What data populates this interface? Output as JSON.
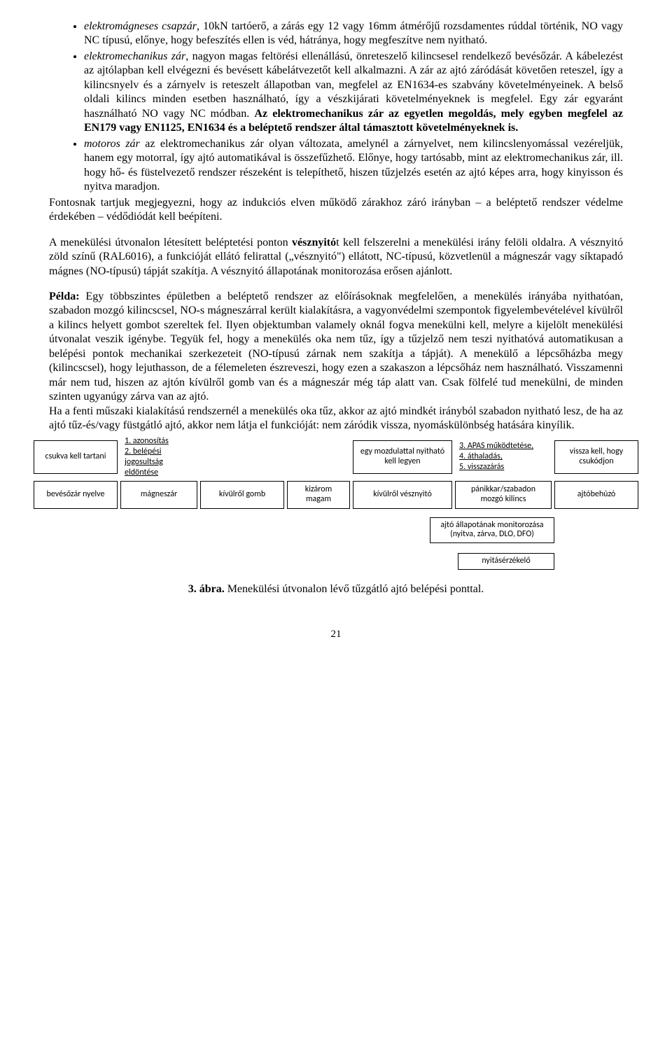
{
  "bullet1": {
    "lead_it": "elektromágneses csapzár",
    "rest1": ", 10kN tartóerő, a zárás egy 12 vagy 16mm átmérőjű rozsdamentes rúddal történik, NO vagy NC típusú, előnye, hogy befeszítés ellen is véd, hátránya, hogy megfeszítve nem nyitható."
  },
  "bullet2": {
    "lead_it": "elektromechanikus zár",
    "rest1": ", nagyon magas feltörési ellenállású, önreteszelő kilincsesel rendelkező bevésőzár. A kábelezést az ajtólapban kell elvégezni és bevésett kábelátvezetőt kell alkalmazni. A zár az ajtó záródását követően reteszel, így a kilincsnyelv és a zárnyelv is reteszelt állapotban van, megfelel az EN1634-es szabvány követelményeinek. A belső oldali kilincs minden esetben használható, így a vészkijárati követelményeknek is megfelel. Egy zár egyaránt használható NO vagy NC módban. ",
    "bold_tail": "Az elektromechanikus zár az egyetlen megoldás, mely egyben megfelel az EN179 vagy EN1125, EN1634 és a beléptető rendszer által támasztott követelményeknek is."
  },
  "bullet3": {
    "lead_it": "motoros zár",
    "rest1": " az elektromechanikus zár olyan változata, amelynél a zárnyelvet, nem kilincslenyomással vezéreljük, hanem egy motorral, így ajtó automatikával is összefűzhető. Előnye, hogy tartósabb, mint az elektromechanikus zár, ill. hogy hő- és füstelvezető rendszer részeként is telepíthető, hiszen tűzjelzés esetén az ajtó képes arra, hogy kinyisson és nyitva maradjon."
  },
  "para_after_list": "Fontosnak tartjuk megjegyezni, hogy az indukciós elven működő zárakhoz záró irányban – a beléptető rendszer védelme érdekében – védődiódát kell beépíteni.",
  "para_escape": {
    "p1a": "A menekülési útvonalon létesített beléptetési ponton ",
    "p1b_bold": "vésznyitó",
    "p1c": "t kell felszerelni a menekülési irány felöli oldalra. A vésznyitó zöld színű (RAL6016), a funkcióját ellátó felirattal („vésznyitó\") ellátott, NC-típusú, közvetlenül a mágneszár vagy síktapadó mágnes (NO-típusú) tápját szakítja. A vésznyitó állapotának monitorozása erősen ajánlott."
  },
  "example": {
    "lead_bold": "Példa:",
    "body": " Egy többszintes épületben a beléptető rendszer az előírásoknak megfelelően, a menekülés irányába nyithatóan, szabadon mozgó kilincscsel, NO-s mágneszárral került kialakításra, a vagyonvédelmi szempontok figyelembevételével kívülről a kilincs helyett gombot szereltek fel. Ilyen objektumban valamely oknál fogva menekülni kell, melyre a kijelölt menekülési útvonalat veszik igénybe. Tegyük fel, hogy a menekülés oka nem tűz, így a tűzjelző nem teszi nyithatóvá automatikusan a belépési pontok mechanikai szerkezeteit (NO-típusú zárnak nem szakítja a tápját). A menekülő a lépcsőházba megy (kilincscsel), hogy lejuthasson, de a félemeleten észreveszi, hogy ezen a szakaszon a lépcsőház nem használható. Visszamenni már nem tud, hiszen az ajtón kívülről gomb van és a mágneszár még táp alatt van. Csak fölfelé tud menekülni, de minden szinten ugyanúgy zárva van az ajtó.",
    "body2": "Ha a fenti műszaki kialakítású rendszernél a menekülés oka tűz, akkor az ajtó mindkét irányból szabadon nyitható lesz, de ha az ajtó tűz-és/vagy füstgátló ajtó, akkor nem látja el funkcióját: nem záródik vissza, nyomáskülönbség hatására kinyílik."
  },
  "diagram": {
    "row1": {
      "b1": "csukva kell tartani",
      "s12": "1. azonosítás\n2. belépési jogosultság eldöntése",
      "b5": "egy mozdulattal nyitható kell legyen",
      "s6": "3. APAS működtetése,\n4. áthaladás,\n5. visszazárás",
      "b7": "vissza kell, hogy csukódjon"
    },
    "row2": {
      "b1": "bevésőzár nyelve",
      "b2": "mágneszár",
      "b3": "kívülről gomb",
      "b4": "kizárom magam",
      "b5": "kívülről vésznyitó",
      "b6": "pánikkar/szabadon mozgó kilincs",
      "b7": "ajtóbehúzó"
    },
    "row3": "ajtó állapotának monitorozása (nyitva, zárva, DLO, DFO)",
    "row4": "nyitásérzékelő"
  },
  "caption": {
    "num": "3. ábra.",
    "text": " Menekülési útvonalon lévő tűzgátló ajtó belépési ponttal."
  },
  "pageno": "21"
}
